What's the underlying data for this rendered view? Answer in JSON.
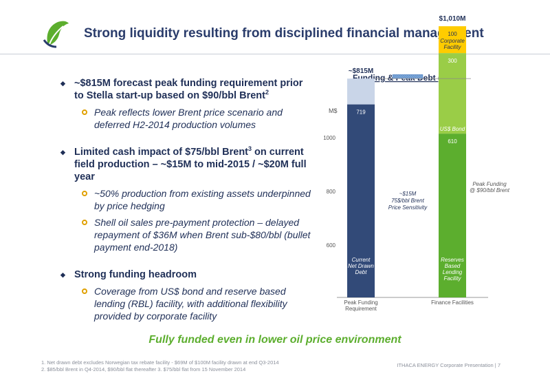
{
  "header": {
    "title": "Strong liquidity resulting from disciplined financial management"
  },
  "bullets": [
    {
      "text": "~$815M forecast peak funding requirement prior to Stella start-up based on $90/bbl Brent",
      "sup": "2",
      "subs": [
        "Peak reflects lower Brent price scenario and deferred H2-2014 production volumes"
      ]
    },
    {
      "text_before": "Limited cash impact of $75/bbl Brent",
      "sup": "3",
      "text_after": " on current field production – ~$15M to mid-2015 / ~$20M full year",
      "subs": [
        "~50% production from existing assets underpinned by price hedging",
        "Shell oil sales pre-payment protection – delayed repayment of $36M when Brent sub-$80/bbl (bullet payment end-2018)"
      ]
    },
    {
      "text": "Strong funding headroom",
      "subs": [
        "Coverage from US$ bond and reserve based lending (RBL) facility, with additional flexibility provided by corporate facility"
      ]
    }
  ],
  "tagline": "Fully funded even in lower oil price environment",
  "footnotes": [
    "1. Net drawn debt excludes Norwegian tax rebate facility - $69M of $100M facility drawn at end Q3-2014",
    "2. $85/bbl Brent in Q4-2014, $90/bbl flat thereafter   3. $75/bbl flat from 15 November 2014"
  ],
  "footer": "ITHACA ENERGY Corporate Presentation  |   7",
  "colors": {
    "navy": "#324a78",
    "light_blue": "#c9d5e8",
    "hatched_blue": "#7fa9d9",
    "green": "#5cae2e",
    "light_green": "#9acd47",
    "yellow": "#ffcc00",
    "title": "#2a3c6b"
  },
  "chart_data": {
    "type": "bar",
    "title": "Funding & Peak Debt (M$)",
    "title_sup": "1",
    "ylabel": "M$",
    "ylim": [
      500,
      1050
    ],
    "yticks": [
      600,
      800,
      1000
    ],
    "categories": [
      "Peak Funding Requirement",
      "Finance Facilities"
    ],
    "stacks": [
      {
        "category": "Peak Funding Requirement",
        "total_label": "~$815M",
        "segments": [
          {
            "name": "Current Net Drawn Debt",
            "value": 719,
            "label": "719",
            "color": "#324a78"
          },
          {
            "name": "",
            "value": 96,
            "label": "",
            "color": "#c9d5e8"
          }
        ]
      },
      {
        "category": "Finance Facilities",
        "total_label": "$1,010M",
        "segments": [
          {
            "name": "Reserves Based Lending Facility",
            "value": 610,
            "label": "610",
            "color": "#5cae2e"
          },
          {
            "name": "US$ Bond",
            "value": 300,
            "label": "300",
            "color": "#9acd47"
          },
          {
            "name": "Corporate Facility",
            "value": 100,
            "label": "100",
            "color": "#ffcc00"
          }
        ]
      }
    ],
    "sensitivity": {
      "value": 15,
      "label_lines": [
        "~$15M",
        "75$/bbl Brent",
        "Price Sensitivity"
      ]
    },
    "reference_line": {
      "value": 815,
      "label_lines": [
        "Peak Funding",
        "@ $90/bbl Brent"
      ]
    }
  }
}
